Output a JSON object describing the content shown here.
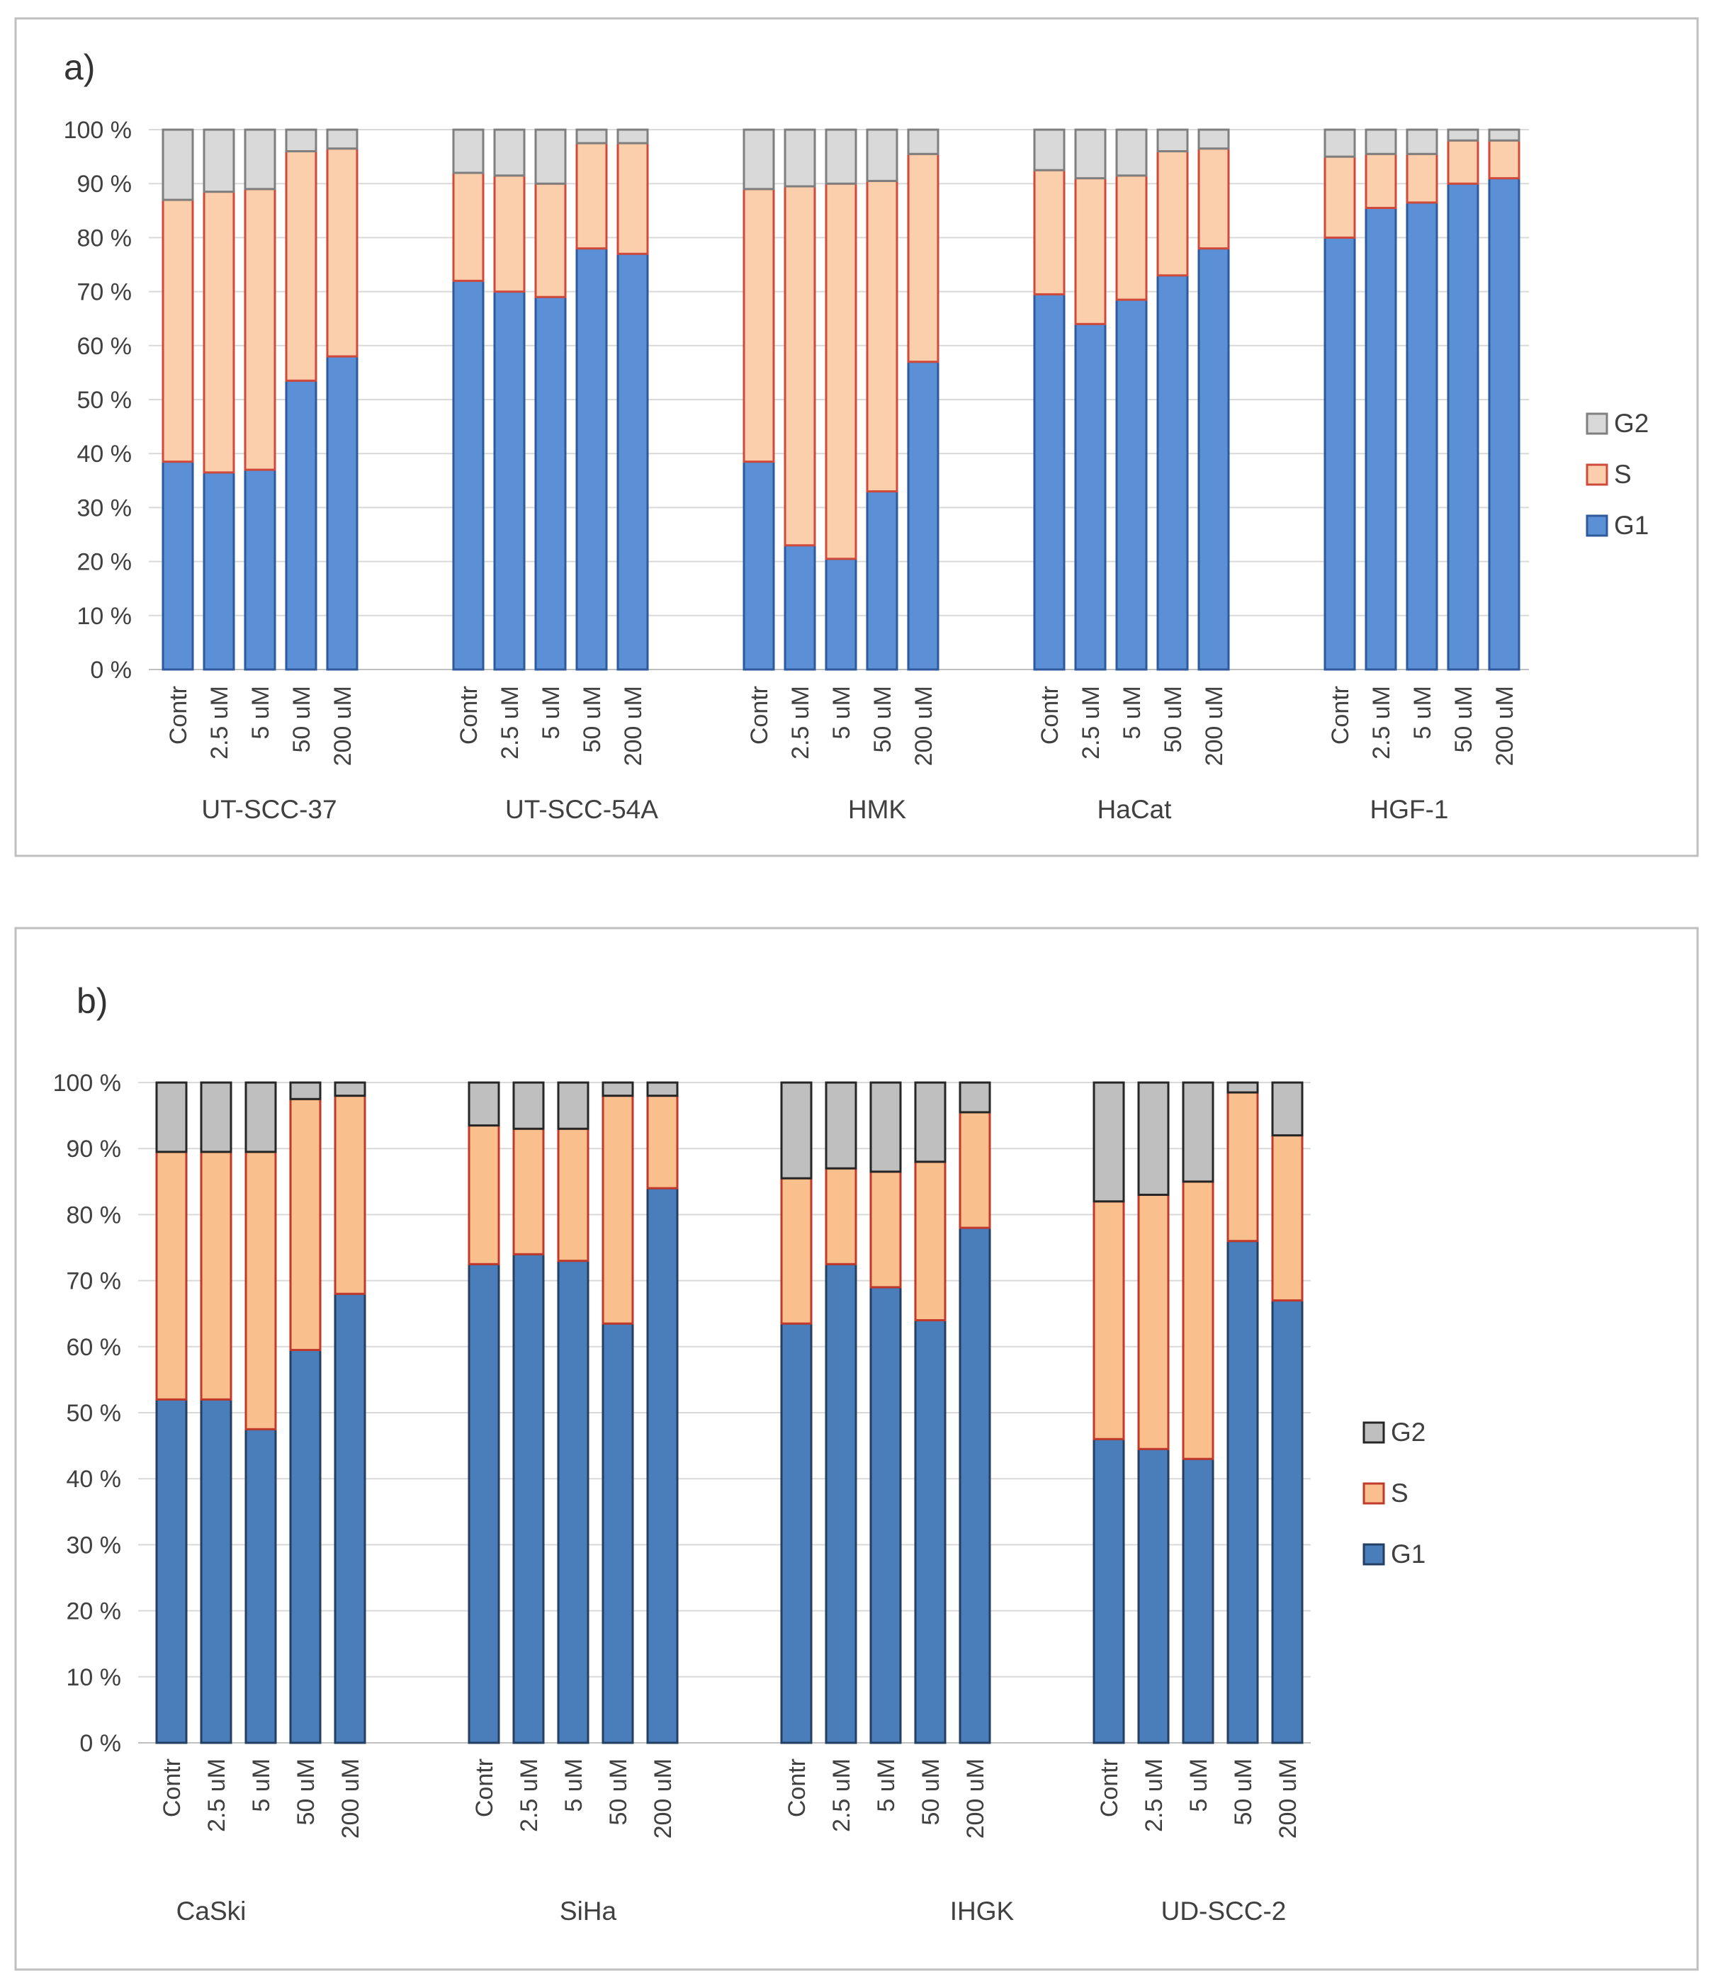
{
  "chart_data": [
    {
      "type": "bar",
      "stacked": true,
      "panel_label": "a)",
      "ylim": [
        0,
        100
      ],
      "yticks": [
        "0 %",
        "10 %",
        "20 %",
        "30 %",
        "40 %",
        "50 %",
        "60 %",
        "70 %",
        "80 %",
        "90 %",
        "100 %"
      ],
      "grid": true,
      "legend_position": "right",
      "legend_order": [
        "G2",
        "S",
        "G1"
      ],
      "colors": {
        "G1": {
          "fill": "#5b8fd6",
          "stroke": "#2e5a9c"
        },
        "S": {
          "fill": "#fbcfab",
          "stroke": "#d04a3c"
        },
        "G2": {
          "fill": "#d9d9d9",
          "stroke": "#7f7f7f"
        }
      },
      "categories": [
        "Contr",
        "2.5 uM",
        "5 uM",
        "50 uM",
        "200 uM"
      ],
      "groups": [
        {
          "name": "UT-SCC-37",
          "series": [
            {
              "name": "G1",
              "values": [
                38.5,
                36.5,
                37,
                53.5,
                58
              ]
            },
            {
              "name": "S",
              "values": [
                48.5,
                52,
                52,
                42.5,
                38.5
              ]
            },
            {
              "name": "G2",
              "values": [
                13,
                11.5,
                11,
                4,
                3.5
              ]
            }
          ]
        },
        {
          "name": "UT-SCC-54A",
          "series": [
            {
              "name": "G1",
              "values": [
                72,
                70,
                69,
                78,
                77
              ]
            },
            {
              "name": "S",
              "values": [
                20,
                21.5,
                21,
                19.5,
                20.5
              ]
            },
            {
              "name": "G2",
              "values": [
                8,
                8.5,
                10,
                2.5,
                2.5
              ]
            }
          ]
        },
        {
          "name": "HMK",
          "series": [
            {
              "name": "G1",
              "values": [
                38.5,
                23,
                20.5,
                33,
                57
              ]
            },
            {
              "name": "S",
              "values": [
                50.5,
                66.5,
                69.5,
                57.5,
                38.5
              ]
            },
            {
              "name": "G2",
              "values": [
                11,
                10.5,
                10,
                9.5,
                4.5
              ]
            }
          ]
        },
        {
          "name": "HaCat",
          "series": [
            {
              "name": "G1",
              "values": [
                69.5,
                64,
                68.5,
                73,
                78
              ]
            },
            {
              "name": "S",
              "values": [
                23,
                27,
                23,
                23,
                18.5
              ]
            },
            {
              "name": "G2",
              "values": [
                7.5,
                9,
                8.5,
                4,
                3.5
              ]
            }
          ]
        },
        {
          "name": "HGF-1",
          "series": [
            {
              "name": "G1",
              "values": [
                80,
                85.5,
                86.5,
                90,
                91
              ]
            },
            {
              "name": "S",
              "values": [
                15,
                10,
                9,
                8,
                7
              ]
            },
            {
              "name": "G2",
              "values": [
                5,
                4.5,
                4.5,
                2,
                2
              ]
            }
          ]
        }
      ]
    },
    {
      "type": "bar",
      "stacked": true,
      "panel_label": "b)",
      "ylim": [
        0,
        100
      ],
      "yticks": [
        "0 %",
        "10 %",
        "20 %",
        "30 %",
        "40 %",
        "50 %",
        "60 %",
        "70 %",
        "80 %",
        "90 %",
        "100 %"
      ],
      "grid": true,
      "legend_position": "right",
      "legend_order": [
        "G2",
        "S",
        "G1"
      ],
      "colors": {
        "G1": {
          "fill": "#4a7ebb",
          "stroke": "#243f60"
        },
        "S": {
          "fill": "#f9c08e",
          "stroke": "#c0392b"
        },
        "G2": {
          "fill": "#bfbfbf",
          "stroke": "#262626"
        }
      },
      "categories": [
        "Contr",
        "2.5 uM",
        "5 uM",
        "50 uM",
        "200 uM"
      ],
      "groups": [
        {
          "name": "CaSki",
          "series": [
            {
              "name": "G1",
              "values": [
                52,
                52,
                47.5,
                59.5,
                68
              ]
            },
            {
              "name": "S",
              "values": [
                37.5,
                37.5,
                42,
                38,
                30
              ]
            },
            {
              "name": "G2",
              "values": [
                10.5,
                10.5,
                10.5,
                2.5,
                2
              ]
            }
          ]
        },
        {
          "name": "SiHa",
          "series": [
            {
              "name": "G1",
              "values": [
                72.5,
                74,
                73,
                63.5,
                84
              ]
            },
            {
              "name": "S",
              "values": [
                21,
                19,
                20,
                34.5,
                14
              ]
            },
            {
              "name": "G2",
              "values": [
                6.5,
                7,
                7,
                2,
                2
              ]
            }
          ]
        },
        {
          "name": "IHGK",
          "series": [
            {
              "name": "G1",
              "values": [
                63.5,
                72.5,
                69,
                64,
                78
              ]
            },
            {
              "name": "S",
              "values": [
                22,
                14.5,
                17.5,
                24,
                17.5
              ]
            },
            {
              "name": "G2",
              "values": [
                14.5,
                13,
                13.5,
                12,
                4.5
              ]
            }
          ]
        },
        {
          "name": "UD-SCC-2",
          "series": [
            {
              "name": "G1",
              "values": [
                46,
                44.5,
                43,
                76,
                67
              ]
            },
            {
              "name": "S",
              "values": [
                36,
                38.5,
                42,
                22.5,
                25
              ]
            },
            {
              "name": "G2",
              "values": [
                18,
                17,
                15,
                1.5,
                8
              ]
            }
          ]
        }
      ]
    }
  ]
}
